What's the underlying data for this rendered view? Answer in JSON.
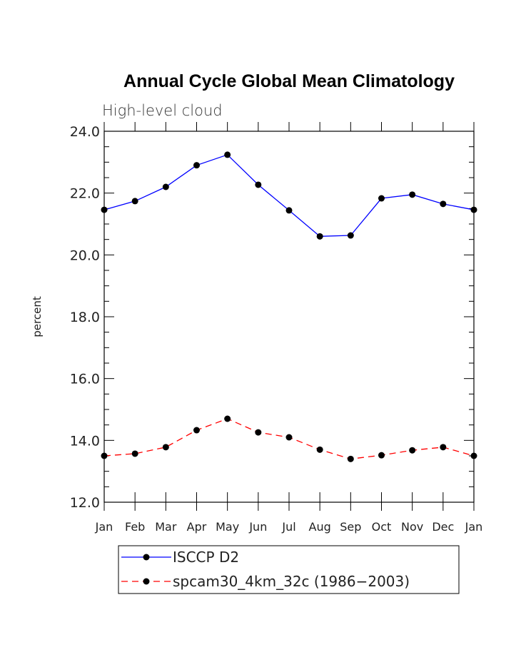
{
  "chart_data": {
    "type": "line",
    "title": "Annual Cycle Global Mean Climatology",
    "subtitle": "High-level cloud",
    "xlabel": "",
    "ylabel": "percent",
    "ylim": [
      12.0,
      24.0
    ],
    "yticks": [
      "12.0",
      "14.0",
      "16.0",
      "18.0",
      "20.0",
      "22.0",
      "24.0"
    ],
    "ytick_values": [
      12,
      14,
      16,
      18,
      20,
      22,
      24
    ],
    "categories": [
      "Jan",
      "Feb",
      "Mar",
      "Apr",
      "May",
      "Jun",
      "Jul",
      "Aug",
      "Sep",
      "Oct",
      "Nov",
      "Dec",
      "Jan"
    ],
    "grid": false,
    "legend_position": "bottom",
    "series": [
      {
        "name": "ISCCP D2",
        "color": "#0000ff",
        "dash": "solid",
        "marker": "filled-circle",
        "values": [
          21.46,
          21.74,
          22.2,
          22.9,
          23.24,
          22.27,
          21.44,
          20.6,
          20.63,
          21.83,
          21.95,
          21.65,
          21.46
        ]
      },
      {
        "name": "spcam30_4km_32c (1986−2003)",
        "color": "#ff0000",
        "dash": "dashed",
        "marker": "filled-circle",
        "values": [
          13.5,
          13.57,
          13.78,
          14.33,
          14.7,
          14.26,
          14.1,
          13.7,
          13.4,
          13.52,
          13.68,
          13.78,
          13.5
        ]
      }
    ]
  }
}
